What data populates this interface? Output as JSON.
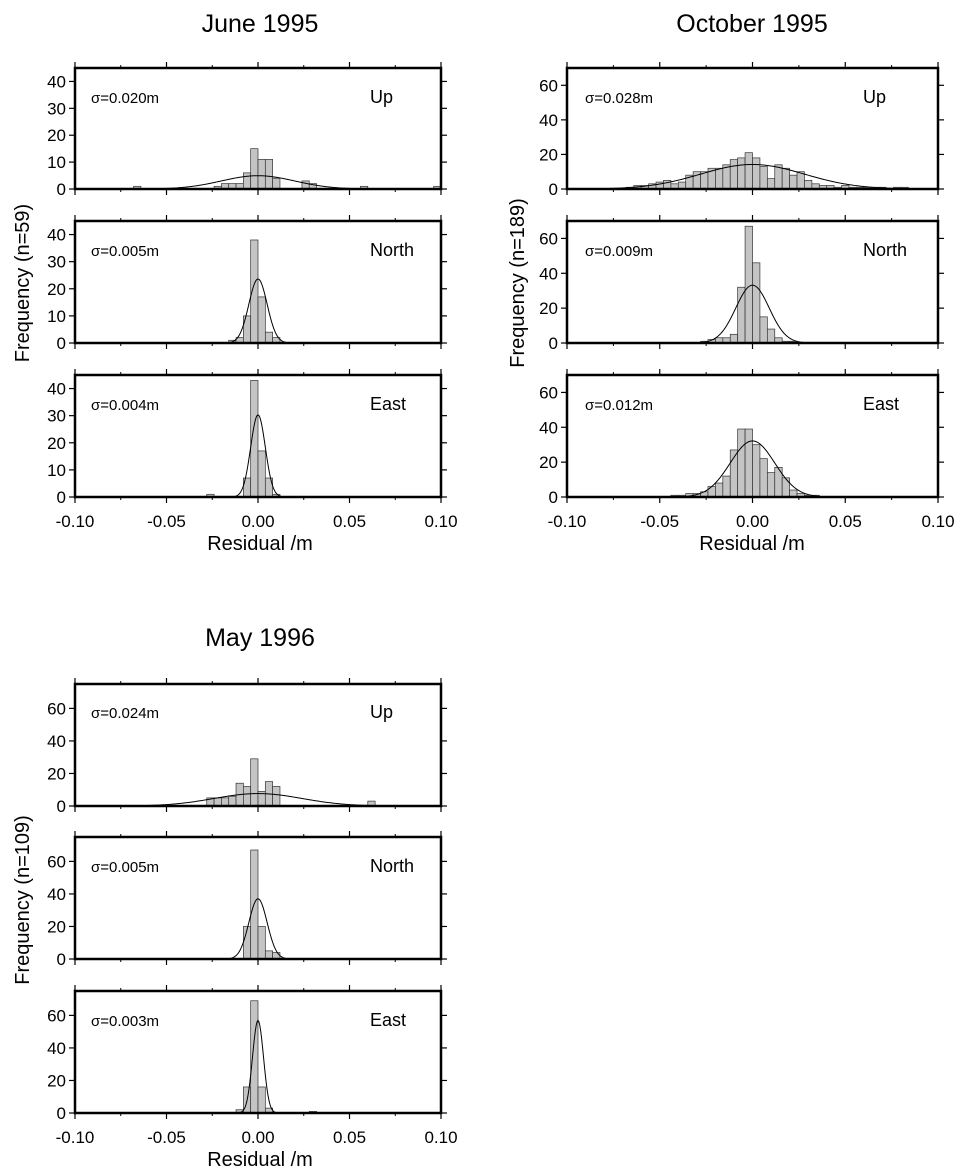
{
  "colors": {
    "bar_fill": "#c4c4c4",
    "bar_stroke": "#333333",
    "frame": "#000000",
    "curve": "#000000"
  },
  "chart_data": [
    {
      "type": "bar",
      "title": "June 1995",
      "ylabel": "Frequency (n=59)",
      "xlabel": "Residual /m",
      "xlim": [
        -0.1,
        0.1
      ],
      "xticks": [
        "-0.10",
        "-0.05",
        "0.00",
        "0.05",
        "0.10"
      ],
      "bin_width": 0.004,
      "panels": [
        {
          "label": "Up",
          "sigma_text": "σ=0.020m",
          "sigma": 0.02,
          "ylim": [
            0,
            45
          ],
          "yticks": [
            0,
            10,
            20,
            30,
            40
          ],
          "bin_centers": [
            -0.066,
            -0.022,
            -0.018,
            -0.014,
            -0.01,
            -0.006,
            -0.002,
            0.002,
            0.006,
            0.01,
            0.026,
            0.03,
            0.058,
            0.098
          ],
          "values": [
            1,
            1,
            2,
            2,
            2,
            6,
            15,
            11,
            11,
            4,
            3,
            2,
            1,
            1
          ]
        },
        {
          "label": "North",
          "sigma_text": "σ=0.005m",
          "sigma": 0.005,
          "ylim": [
            0,
            45
          ],
          "yticks": [
            0,
            10,
            20,
            30,
            40
          ],
          "bin_centers": [
            -0.014,
            -0.01,
            -0.006,
            -0.002,
            0.002,
            0.006,
            0.01
          ],
          "values": [
            1,
            2,
            10,
            38,
            17,
            4,
            2
          ]
        },
        {
          "label": "East",
          "sigma_text": "σ=0.004m",
          "sigma": 0.004,
          "ylim": [
            0,
            45
          ],
          "yticks": [
            0,
            10,
            20,
            30,
            40
          ],
          "bin_centers": [
            -0.026,
            -0.006,
            -0.002,
            0.002,
            0.006,
            0.01
          ],
          "values": [
            1,
            7,
            43,
            17,
            7,
            1
          ]
        }
      ]
    },
    {
      "type": "bar",
      "title": "October 1995",
      "ylabel": "Frequency (n=189)",
      "xlabel": "Residual /m",
      "xlim": [
        -0.1,
        0.1
      ],
      "xticks": [
        "-0.10",
        "-0.05",
        "0.00",
        "0.05",
        "0.10"
      ],
      "bin_width": 0.004,
      "panels": [
        {
          "label": "Up",
          "sigma_text": "σ=0.028m",
          "sigma": 0.028,
          "ylim": [
            0,
            70
          ],
          "yticks": [
            0,
            20,
            40,
            60
          ],
          "bin_centers": [
            -0.066,
            -0.062,
            -0.058,
            -0.054,
            -0.05,
            -0.046,
            -0.042,
            -0.038,
            -0.034,
            -0.03,
            -0.026,
            -0.022,
            -0.018,
            -0.014,
            -0.01,
            -0.006,
            -0.002,
            0.002,
            0.006,
            0.01,
            0.014,
            0.018,
            0.022,
            0.026,
            0.03,
            0.034,
            0.038,
            0.042,
            0.046,
            0.05,
            0.054,
            0.058,
            0.062,
            0.066,
            0.07,
            0.078,
            0.082
          ],
          "values": [
            1,
            2,
            2,
            3,
            4,
            5,
            3,
            4,
            8,
            10,
            10,
            12,
            12,
            14,
            17,
            18,
            21,
            18,
            13,
            6,
            14,
            12,
            8,
            10,
            5,
            3,
            2,
            2,
            1,
            2,
            1,
            1,
            1,
            1,
            1,
            1,
            1
          ]
        },
        {
          "label": "North",
          "sigma_text": "σ=0.009m",
          "sigma": 0.009,
          "ylim": [
            0,
            70
          ],
          "yticks": [
            0,
            20,
            40,
            60
          ],
          "bin_centers": [
            -0.026,
            -0.022,
            -0.018,
            -0.014,
            -0.01,
            -0.006,
            -0.002,
            0.002,
            0.006,
            0.01,
            0.014,
            0.018,
            0.022
          ],
          "values": [
            1,
            2,
            3,
            3,
            5,
            32,
            67,
            46,
            15,
            8,
            3,
            1,
            1
          ]
        },
        {
          "label": "East",
          "sigma_text": "σ=0.012m",
          "sigma": 0.012,
          "ylim": [
            0,
            70
          ],
          "yticks": [
            0,
            20,
            40,
            60
          ],
          "bin_centers": [
            -0.042,
            -0.038,
            -0.034,
            -0.03,
            -0.026,
            -0.022,
            -0.018,
            -0.014,
            -0.01,
            -0.006,
            -0.002,
            0.002,
            0.006,
            0.01,
            0.014,
            0.018,
            0.022,
            0.026,
            0.03,
            0.034
          ],
          "values": [
            1,
            1,
            2,
            2,
            3,
            6,
            8,
            12,
            27,
            39,
            39,
            30,
            22,
            14,
            17,
            11,
            4,
            2,
            1,
            1
          ]
        }
      ]
    },
    {
      "type": "bar",
      "title": "May 1996",
      "ylabel": "Frequency (n=109)",
      "xlabel": "Residual /m",
      "xlim": [
        -0.1,
        0.1
      ],
      "xticks": [
        "-0.10",
        "-0.05",
        "0.00",
        "0.05",
        "0.10"
      ],
      "bin_width": 0.004,
      "panels": [
        {
          "label": "Up",
          "sigma_text": "σ=0.024m",
          "sigma": 0.024,
          "ylim": [
            0,
            75
          ],
          "yticks": [
            0,
            20,
            40,
            60
          ],
          "bin_centers": [
            -0.026,
            -0.022,
            -0.018,
            -0.014,
            -0.01,
            -0.006,
            -0.002,
            0.002,
            0.006,
            0.01,
            0.062
          ],
          "values": [
            5,
            5,
            5,
            6,
            14,
            12,
            29,
            9,
            15,
            12,
            3
          ]
        },
        {
          "label": "North",
          "sigma_text": "σ=0.005m",
          "sigma": 0.005,
          "ylim": [
            0,
            75
          ],
          "yticks": [
            0,
            20,
            40,
            60
          ],
          "bin_centers": [
            -0.006,
            -0.002,
            0.002,
            0.006,
            0.01
          ],
          "values": [
            20,
            67,
            20,
            5,
            4
          ]
        },
        {
          "label": "East",
          "sigma_text": "σ=0.003m",
          "sigma": 0.003,
          "ylim": [
            0,
            75
          ],
          "yticks": [
            0,
            20,
            40,
            60
          ],
          "bin_centers": [
            -0.01,
            -0.006,
            -0.002,
            0.002,
            0.006,
            0.03
          ],
          "values": [
            2,
            16,
            69,
            16,
            3,
            1
          ]
        }
      ]
    }
  ]
}
